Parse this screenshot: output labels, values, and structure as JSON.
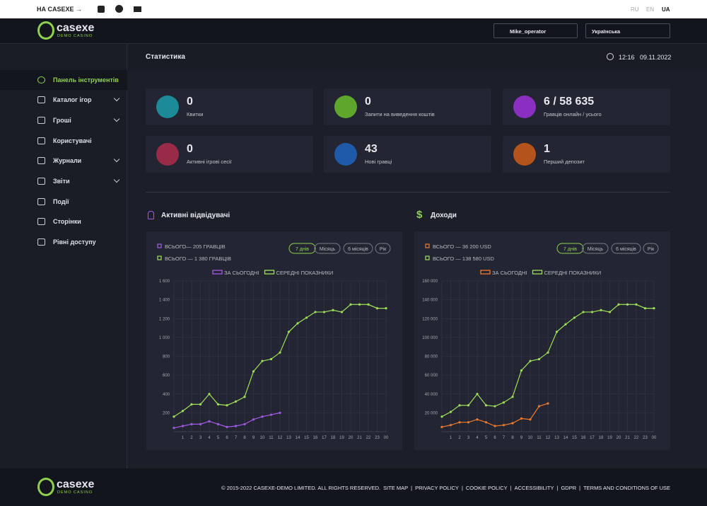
{
  "topbar": {
    "back": "НА CASEXE",
    "langs": [
      "RU",
      "EN",
      "UA"
    ]
  },
  "header": {
    "logo": "casexe",
    "logo_sub": "DEMO CASINO",
    "user": "Mike_operator",
    "language": "Українська"
  },
  "sidebar": {
    "items": [
      "Панель інструментів",
      "Каталог ігор",
      "Гроші",
      "Користувачі",
      "Журнали",
      "Звіти",
      "Події",
      "Сторінки",
      "Рівні доступу"
    ]
  },
  "page": {
    "title": "Статистика",
    "time": "12:16",
    "date": "09.11.2022"
  },
  "stats": [
    {
      "value": 0,
      "label": "Квитки"
    },
    {
      "value": 0,
      "label": "Запити на виведення коштів"
    },
    {
      "value": "6 / 58 635",
      "label": "Гравців онлайн / усього"
    },
    {
      "value": 0,
      "label": "Активні ігрові сесії"
    },
    {
      "value": 43,
      "label": "Нові гравці"
    },
    {
      "value": 1,
      "label": "Перший депозит"
    }
  ],
  "chart_data": [
    {
      "type": "line",
      "title": "Активні відвідувачі",
      "totals": [
        "ВСЬОГО— 205 ГРАВЦІВ",
        "ВСЬОГО — 1 380 ГРАВЦІВ"
      ],
      "buttons": [
        "7 днів",
        "Місяць",
        "6 місяців",
        "Рік"
      ],
      "categories": [
        null,
        "1",
        "2",
        "3",
        "4",
        "5",
        "6",
        "7",
        "8",
        "9",
        "10",
        "11",
        "12",
        "13",
        "14",
        "15",
        "16",
        "17",
        "18",
        "19",
        "20",
        "21",
        "22",
        "23",
        "00"
      ],
      "series": [
        {
          "name": "ЗА СЬОГОДНІ",
          "color": "#a25be8",
          "values": [
            40,
            60,
            80,
            80,
            110,
            80,
            50,
            60,
            80,
            130,
            160,
            180,
            200,
            null,
            null,
            null,
            null,
            null,
            null,
            null,
            null,
            null,
            null,
            null,
            null
          ]
        },
        {
          "name": "СЕРЕДНІ ПОКАЗНИКИ",
          "color": "#9fe05a",
          "values": [
            160,
            220,
            290,
            290,
            400,
            290,
            280,
            320,
            370,
            640,
            750,
            770,
            840,
            1060,
            1150,
            1210,
            1270,
            1270,
            1290,
            1270,
            1350,
            1350,
            1350,
            1310,
            1310
          ]
        }
      ],
      "ylim": [
        0,
        1600
      ],
      "yticks": [
        200,
        400,
        600,
        800,
        {
          "value": 1000,
          "label": "1 000"
        },
        {
          "value": 1200,
          "label": "1 200"
        },
        {
          "value": 1400,
          "label": "1 400"
        },
        {
          "value": 1600,
          "label": "1 600"
        }
      ],
      "grid": true
    },
    {
      "type": "line",
      "title": "Доходи",
      "totals": [
        "ВСЬОГО — 36 200 USD",
        "ВСЬОГО — 138 580 USD"
      ],
      "buttons": [
        "7 днів",
        "Місяць",
        "6 місяців",
        "Рік"
      ],
      "categories": [
        null,
        "1",
        "2",
        "3",
        "4",
        "5",
        "6",
        "7",
        "8",
        "9",
        "10",
        "11",
        "12",
        "13",
        "14",
        "15",
        "16",
        "17",
        "18",
        "19",
        "20",
        "21",
        "22",
        "23",
        "00"
      ],
      "series": [
        {
          "name": "ЗА СЬОГОДНІ",
          "color": "#f07b2c",
          "values": [
            5000,
            7000,
            10000,
            10000,
            13000,
            10000,
            6000,
            7000,
            9000,
            14000,
            13000,
            27000,
            30000,
            null,
            null,
            null,
            null,
            null,
            null,
            null,
            null,
            null,
            null,
            null,
            null
          ]
        },
        {
          "name": "СЕРЕДНІ ПОКАЗНИКИ",
          "color": "#9fe05a",
          "values": [
            16000,
            21000,
            28000,
            28000,
            40000,
            28000,
            27000,
            31000,
            37000,
            65000,
            75000,
            77000,
            84000,
            106000,
            114000,
            121000,
            127000,
            127000,
            129000,
            127000,
            135000,
            135000,
            135000,
            131000,
            131000
          ]
        }
      ],
      "ylim": [
        0,
        160000
      ],
      "yticks": [
        {
          "value": 20000,
          "label": "20 000"
        },
        {
          "value": 40000,
          "label": "40 000"
        },
        {
          "value": 60000,
          "label": "60 000"
        },
        {
          "value": 80000,
          "label": "80 000"
        },
        {
          "value": 100000,
          "label": "100 000"
        },
        {
          "value": 120000,
          "label": "120 000"
        },
        {
          "value": 140000,
          "label": "140 000"
        },
        {
          "value": 160000,
          "label": "160 000"
        }
      ],
      "grid": true
    }
  ],
  "footer": {
    "copyright": "© 2015-2022 CASEXE-DEMO LIMITED. ALL RIGHTS RESERVED.",
    "links": [
      "SITE MAP",
      "PRIVACY POLICY",
      "COOKIE POLICY",
      "ACCESSIBILITY",
      "GDPR",
      "TERMS AND CONDITIONS OF USE"
    ]
  }
}
